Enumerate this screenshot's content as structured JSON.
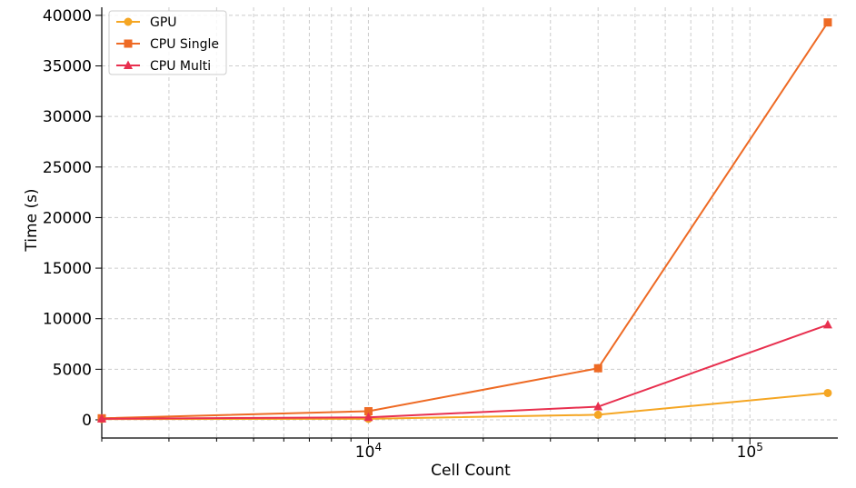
{
  "chart_data": {
    "type": "line",
    "title": "",
    "xlabel": "Cell Count",
    "ylabel": "Time (s)",
    "xscale": "log",
    "xlim": [
      2000,
      170000
    ],
    "ylim": [
      -1800,
      40800
    ],
    "x": [
      2000,
      10000,
      40000,
      160000
    ],
    "grid": true,
    "legend_position": "top-left",
    "x_major_ticks": [
      {
        "value": 10000,
        "base": "10",
        "exp": "4"
      },
      {
        "value": 100000,
        "base": "10",
        "exp": "5"
      }
    ],
    "y_ticks": [
      0,
      5000,
      10000,
      15000,
      20000,
      25000,
      30000,
      35000,
      40000
    ],
    "series": [
      {
        "name": "GPU",
        "color": "#f5a623",
        "marker": "circle",
        "values": [
          80,
          100,
          500,
          2650
        ]
      },
      {
        "name": "CPU Single",
        "color": "#ee6a24",
        "marker": "square",
        "values": [
          150,
          850,
          5100,
          39300
        ]
      },
      {
        "name": "CPU Multi",
        "color": "#e8304f",
        "marker": "triangle",
        "values": [
          100,
          250,
          1300,
          9400
        ]
      }
    ]
  }
}
